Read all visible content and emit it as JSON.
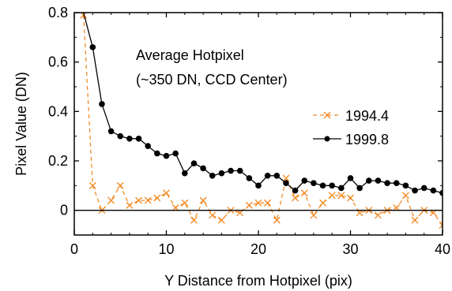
{
  "chart_data": {
    "type": "line",
    "annotation": [
      "Average Hotpixel",
      "(~350 DN, CCD Center)"
    ],
    "xlabel": "Y Distance from Hotpixel (pix)",
    "ylabel": "Pixel Value (DN)",
    "xlim": [
      0,
      40
    ],
    "ylim": [
      -0.1,
      0.8
    ],
    "xticks": [
      0,
      10,
      20,
      30,
      40
    ],
    "yticks": [
      0,
      0.2,
      0.4,
      0.6,
      0.8
    ],
    "ytick_labels": [
      "0",
      "0.2",
      "0.4",
      "0.6",
      "0.8"
    ],
    "zero_line": true,
    "grid": false,
    "legend_position": "center-right",
    "series": [
      {
        "name": "1994.4",
        "color": "#f28c28",
        "line_style": "dashed",
        "marker": "x",
        "x": [
          1,
          2,
          3,
          4,
          5,
          6,
          7,
          8,
          9,
          10,
          11,
          12,
          13,
          14,
          15,
          16,
          17,
          18,
          19,
          20,
          21,
          22,
          23,
          24,
          25,
          26,
          27,
          28,
          29,
          30,
          31,
          32,
          33,
          34,
          35,
          36,
          37,
          38,
          39,
          40
        ],
        "y": [
          0.79,
          0.1,
          0.0,
          0.04,
          0.1,
          0.02,
          0.04,
          0.04,
          0.05,
          0.07,
          0.01,
          0.03,
          -0.04,
          0.04,
          -0.02,
          -0.04,
          0.0,
          -0.01,
          0.02,
          0.03,
          0.03,
          -0.04,
          0.13,
          0.05,
          0.07,
          -0.02,
          0.03,
          0.06,
          0.06,
          0.05,
          -0.01,
          0.0,
          -0.02,
          0.0,
          0.01,
          0.06,
          -0.04,
          0.0,
          -0.01,
          -0.06
        ]
      },
      {
        "name": "1999.8",
        "color": "#000000",
        "line_style": "solid",
        "marker": "dot",
        "x": [
          1,
          2,
          3,
          4,
          5,
          6,
          7,
          8,
          9,
          10,
          11,
          12,
          13,
          14,
          15,
          16,
          17,
          18,
          19,
          20,
          21,
          22,
          23,
          24,
          25,
          26,
          27,
          28,
          29,
          30,
          31,
          32,
          33,
          34,
          35,
          36,
          37,
          38,
          39,
          40
        ],
        "y": [
          0.82,
          0.66,
          0.43,
          0.32,
          0.3,
          0.29,
          0.29,
          0.26,
          0.23,
          0.22,
          0.23,
          0.15,
          0.19,
          0.17,
          0.14,
          0.15,
          0.16,
          0.16,
          0.13,
          0.1,
          0.14,
          0.14,
          0.11,
          0.08,
          0.12,
          0.11,
          0.1,
          0.1,
          0.09,
          0.13,
          0.09,
          0.12,
          0.12,
          0.11,
          0.11,
          0.1,
          0.08,
          0.09,
          0.08,
          0.07
        ]
      }
    ]
  }
}
